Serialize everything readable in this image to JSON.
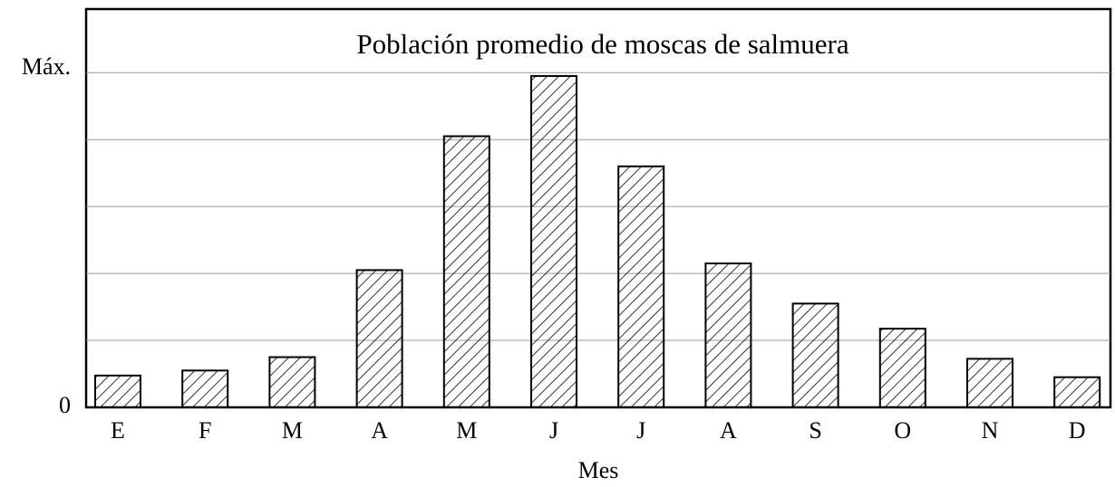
{
  "chart_data": {
    "type": "bar",
    "title": "Población promedio de moscas de salmuera",
    "x_label": "Mes",
    "categories": [
      "E",
      "F",
      "M",
      "A",
      "M",
      "J",
      "J",
      "A",
      "S",
      "O",
      "N",
      "D"
    ],
    "values": [
      0.095,
      0.11,
      0.15,
      0.41,
      0.81,
      0.99,
      0.72,
      0.43,
      0.31,
      0.235,
      0.145,
      0.09
    ],
    "ylim": [
      0,
      1.19
    ],
    "yticks": [
      0,
      {
        "value": 1,
        "label": "Máx."
      }
    ],
    "grid_lines": [
      0.2,
      0.4,
      0.6,
      0.8,
      1
    ],
    "grid": true,
    "color": "#000000",
    "fill": "hatch"
  }
}
